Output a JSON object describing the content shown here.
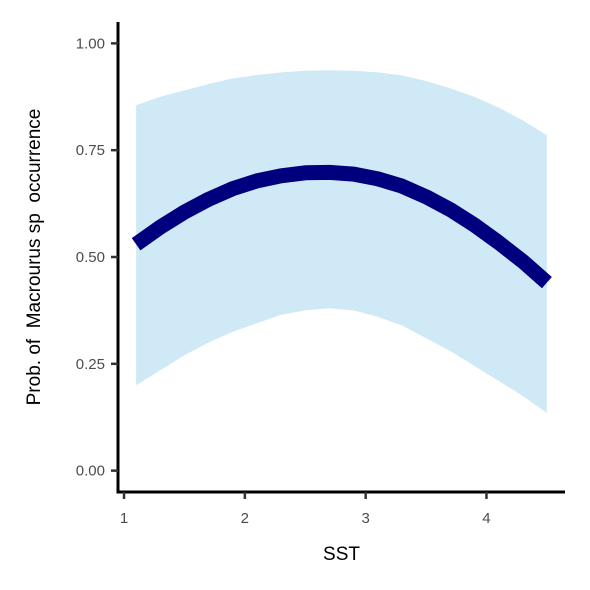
{
  "chart_data": {
    "type": "line",
    "xlabel": "SST",
    "ylabel": "Prob. of  Macrourus sp  occurrence",
    "xlim": [
      0.95,
      4.65
    ],
    "ylim": [
      -0.05,
      1.05
    ],
    "xticks": [
      1,
      2,
      3,
      4
    ],
    "yticks": [
      0.0,
      0.25,
      0.5,
      0.75,
      1.0
    ],
    "xtick_labels": [
      "1",
      "2",
      "3",
      "4"
    ],
    "ytick_labels": [
      "0.00",
      "0.25",
      "0.50",
      "0.75",
      "1.00"
    ],
    "grid": false,
    "legend": "none",
    "x": [
      1.1,
      1.3,
      1.5,
      1.7,
      1.9,
      2.1,
      2.3,
      2.5,
      2.7,
      2.9,
      3.1,
      3.3,
      3.5,
      3.7,
      3.9,
      4.1,
      4.3,
      4.5
    ],
    "series": [
      {
        "values": [
          0.53,
          0.57,
          0.605,
          0.635,
          0.66,
          0.678,
          0.69,
          0.697,
          0.698,
          0.694,
          0.683,
          0.666,
          0.641,
          0.611,
          0.575,
          0.534,
          0.49,
          0.44
        ],
        "lower": [
          0.2,
          0.235,
          0.27,
          0.3,
          0.325,
          0.345,
          0.365,
          0.375,
          0.38,
          0.375,
          0.36,
          0.34,
          0.31,
          0.28,
          0.245,
          0.21,
          0.175,
          0.135
        ],
        "upper": [
          0.855,
          0.875,
          0.89,
          0.905,
          0.918,
          0.926,
          0.932,
          0.936,
          0.937,
          0.936,
          0.932,
          0.925,
          0.912,
          0.895,
          0.875,
          0.85,
          0.82,
          0.785
        ]
      }
    ],
    "colors": {
      "line": "#00007f",
      "ribbon": "#cfeaf6",
      "axis": "#000000",
      "tick_text": "#4d4d4d"
    }
  }
}
